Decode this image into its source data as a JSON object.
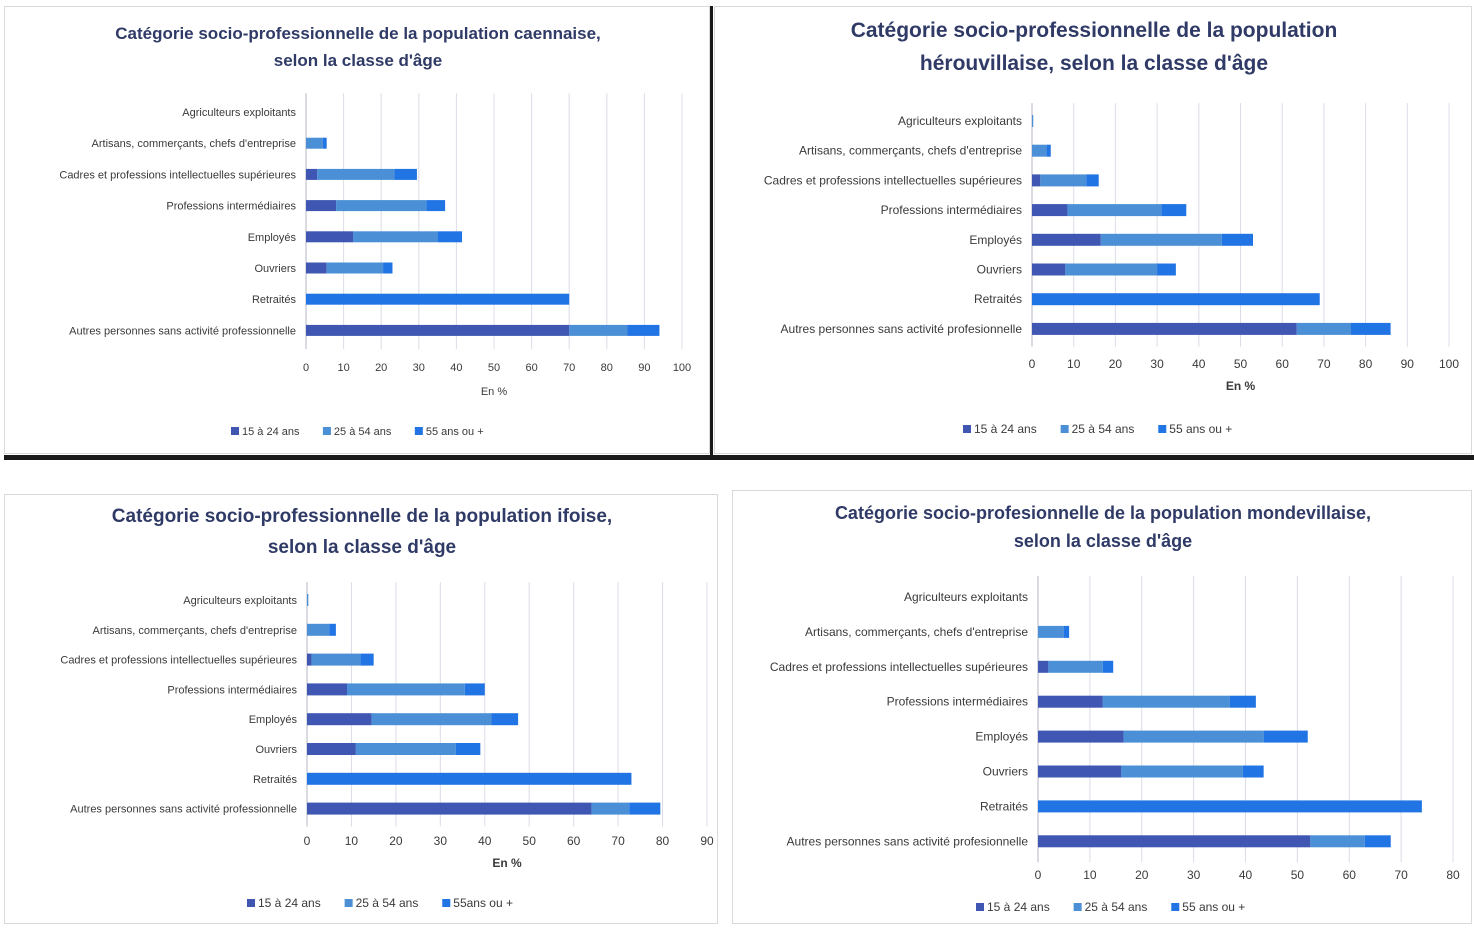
{
  "colors": {
    "s15": "#3f56b3",
    "s25": "#4b90d6",
    "s55": "#2174e3",
    "grid": "#dcdce8",
    "axis": "#b5b5c5",
    "title": "#2f3a66",
    "text": "#3a3a3a"
  },
  "chart_data": [
    {
      "type": "bar",
      "orientation": "horizontal",
      "stacked": true,
      "title": "Catégorie socio-professionnelle de la population caennaise, selon la classe d'âge",
      "title_lines": [
        "Catégorie socio-professionnelle de la population caennaise,",
        "selon la classe d'âge"
      ],
      "categories": [
        "Agriculteurs exploitants",
        "Artisans, commerçants, chefs d'entreprise",
        "Cadres et professions intellectuelles supérieures",
        "Professions intermédiaires",
        "Employés",
        "Ouvriers",
        "Retraités",
        "Autres personnes sans activité professionnelle"
      ],
      "series": [
        {
          "name": "15 à 24 ans",
          "color": "#3f56b3",
          "values": [
            0,
            0,
            3,
            8,
            12.5,
            5.5,
            0,
            70
          ]
        },
        {
          "name": "25 à 54 ans",
          "color": "#4b90d6",
          "values": [
            0,
            4.5,
            20.5,
            24,
            22.5,
            15,
            0,
            15.5
          ]
        },
        {
          "name": "55 ans ou +",
          "color": "#2174e3",
          "values": [
            0,
            1,
            6,
            5,
            6.5,
            2.5,
            70,
            8.5
          ]
        }
      ],
      "xlabel": "En %",
      "xlim": [
        0,
        100
      ],
      "xticks": [
        0,
        10,
        20,
        30,
        40,
        50,
        60,
        70,
        80,
        90,
        100
      ],
      "grid": true,
      "legend": "bottom"
    },
    {
      "type": "bar",
      "orientation": "horizontal",
      "stacked": true,
      "title": "Catégorie socio-professionnelle de la population hérouvillaise, selon la classe d'âge",
      "title_lines": [
        "Catégorie socio-professionnelle de la population",
        "hérouvillaise, selon la classe d'âge"
      ],
      "categories": [
        "Agriculteurs exploitants",
        "Artisans, commerçants, chefs d'entreprise",
        "Cadres et professions intellectuelles supérieures",
        "Professions intermédiaires",
        "Employés",
        "Ouvriers",
        "Retraités",
        "Autres personnes sans activité profesionnelle"
      ],
      "series": [
        {
          "name": "15 à 24 ans",
          "color": "#3f56b3",
          "values": [
            0,
            0,
            2,
            8.5,
            16.5,
            8,
            0,
            63.5
          ]
        },
        {
          "name": "25 à 54 ans",
          "color": "#4b90d6",
          "values": [
            0.3,
            3.5,
            11,
            22.5,
            29,
            22,
            0,
            13
          ]
        },
        {
          "name": "55 ans ou +",
          "color": "#2174e3",
          "values": [
            0,
            1,
            3,
            6,
            7.5,
            4.5,
            69,
            9.5
          ]
        }
      ],
      "xlabel": "En %",
      "xlim": [
        0,
        100
      ],
      "xticks": [
        0,
        10,
        20,
        30,
        40,
        50,
        60,
        70,
        80,
        90,
        100
      ],
      "grid": true,
      "legend": "bottom"
    },
    {
      "type": "bar",
      "orientation": "horizontal",
      "stacked": true,
      "title": "Catégorie socio-professionnelle de la population ifoise, selon la classe d'âge",
      "title_lines": [
        "Catégorie socio-professionnelle de la population ifoise,",
        "selon la classe d'âge"
      ],
      "categories": [
        "Agriculteurs exploitants",
        "Artisans, commerçants, chefs d'entreprise",
        "Cadres et professions intellectuelles supérieures",
        "Professions intermédiaires",
        "Employés",
        "Ouvriers",
        "Retraités",
        "Autres personnes sans activité professionnelle"
      ],
      "series": [
        {
          "name": "15 à 24 ans",
          "color": "#3f56b3",
          "values": [
            0,
            0,
            1,
            9,
            14.5,
            11,
            0,
            64
          ]
        },
        {
          "name": "25 à 54 ans",
          "color": "#4b90d6",
          "values": [
            0.3,
            5,
            11,
            26.5,
            27,
            22.5,
            0,
            8.5
          ]
        },
        {
          "name": "55ans ou +",
          "color": "#2174e3",
          "values": [
            0,
            1.5,
            3,
            4.5,
            6,
            5.5,
            73,
            7
          ]
        }
      ],
      "xlabel": "En %",
      "xlim": [
        0,
        90
      ],
      "xticks": [
        0,
        10,
        20,
        30,
        40,
        50,
        60,
        70,
        80,
        90
      ],
      "grid": true,
      "legend": "bottom"
    },
    {
      "type": "bar",
      "orientation": "horizontal",
      "stacked": true,
      "title": "Catégorie socio-profesionnelle de la population mondevillaise, selon la classe d'âge",
      "title_lines": [
        "Catégorie socio-profesionnelle de la population mondevillaise,",
        "selon la classe d'âge"
      ],
      "categories": [
        "Agriculteurs exploitants",
        "Artisans, commerçants, chefs d'entreprise",
        "Cadres et professions intellectuelles supérieures",
        "Professions intermédiaires",
        "Employés",
        "Ouvriers",
        "Retraités",
        "Autres personnes sans activité profesionnelle"
      ],
      "series": [
        {
          "name": "15 à 24 ans",
          "color": "#3f56b3",
          "values": [
            0,
            0,
            2,
            12.5,
            16.5,
            16,
            0,
            52.5
          ]
        },
        {
          "name": "25 à 54 ans",
          "color": "#4b90d6",
          "values": [
            0,
            5,
            10.5,
            24.5,
            27,
            23.5,
            0,
            10.5
          ]
        },
        {
          "name": "55 ans ou +",
          "color": "#2174e3",
          "values": [
            0,
            1,
            2,
            5,
            8.5,
            4,
            74,
            5
          ]
        }
      ],
      "xlabel": "",
      "xlim": [
        0,
        80
      ],
      "xticks": [
        0,
        10,
        20,
        30,
        40,
        50,
        60,
        70,
        80
      ],
      "grid": true,
      "legend": "bottom"
    }
  ]
}
